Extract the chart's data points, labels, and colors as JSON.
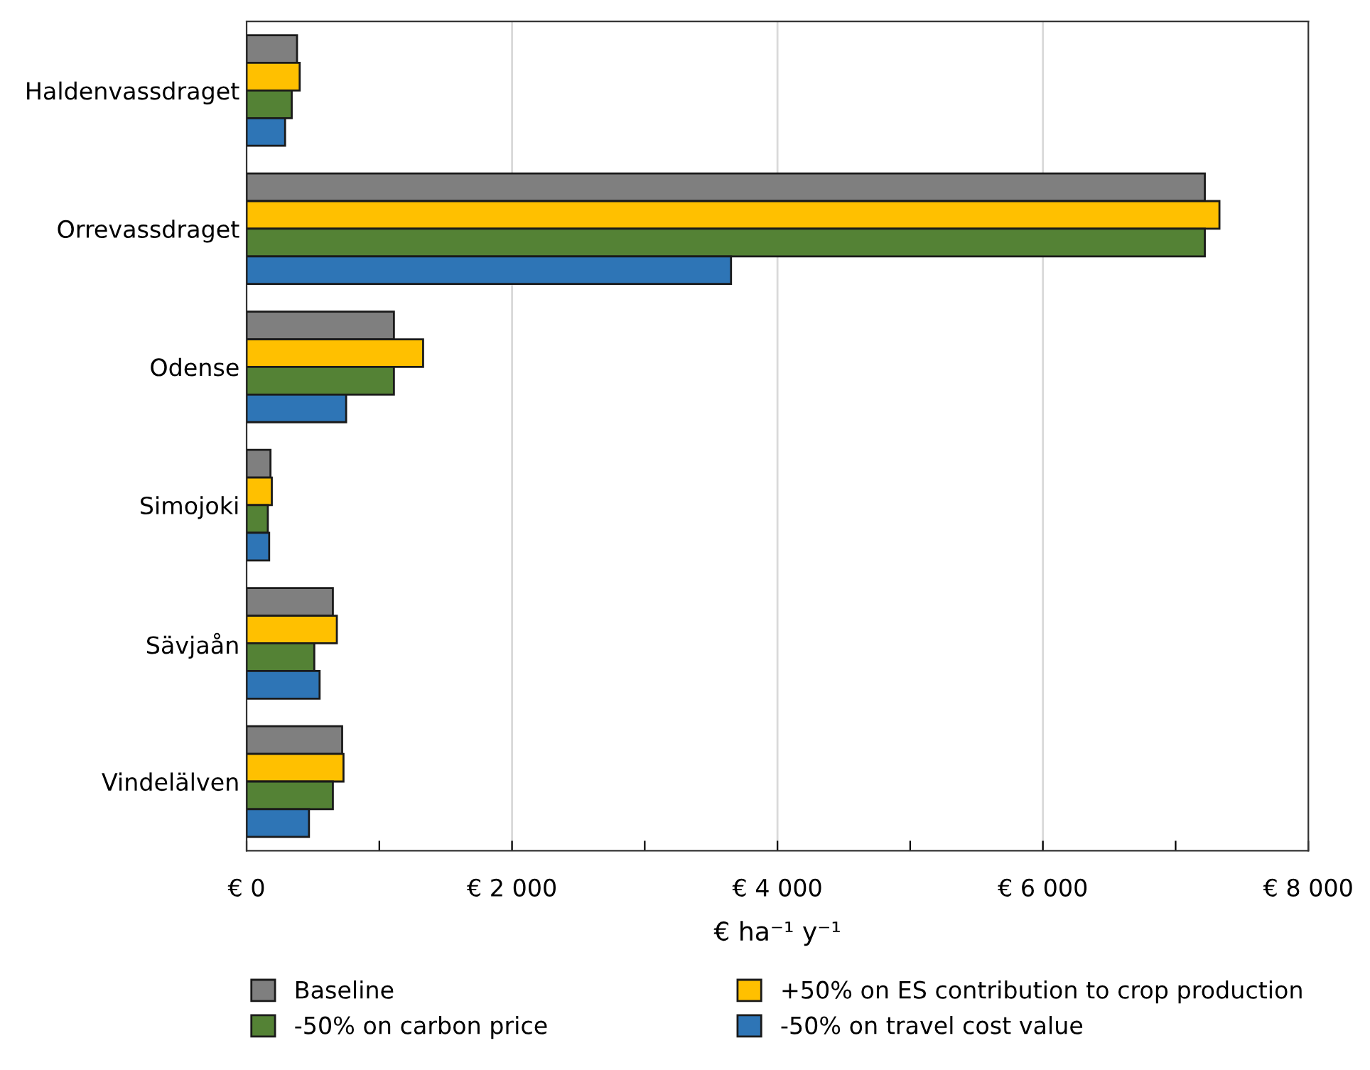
{
  "chart_data": {
    "type": "bar",
    "orientation": "horizontal",
    "xlabel": "€ ha⁻¹ y⁻¹",
    "categories": [
      "Haldenvassdraget",
      "Orrevassdraget",
      "Odense",
      "Simojoki",
      "Sävjaån",
      "Vindelälven"
    ],
    "series": [
      {
        "name": "Baseline",
        "color": "#7f7f7f",
        "values": [
          380,
          7220,
          1110,
          180,
          650,
          720
        ]
      },
      {
        "name": "+50% on ES contribution to crop production",
        "color": "#ffc000",
        "values": [
          400,
          7330,
          1330,
          190,
          680,
          730
        ]
      },
      {
        "name": "-50% on carbon price",
        "color": "#548235",
        "values": [
          340,
          7220,
          1110,
          160,
          510,
          650
        ]
      },
      {
        "name": "-50% on travel cost value",
        "color": "#2e75b6",
        "values": [
          290,
          3650,
          750,
          170,
          550,
          470
        ]
      }
    ],
    "xlim": [
      0,
      8000
    ],
    "xticks": [
      {
        "value": 0,
        "label": "€ 0"
      },
      {
        "value": 1000,
        "label": null
      },
      {
        "value": 2000,
        "label": "€ 2 000"
      },
      {
        "value": 3000,
        "label": null
      },
      {
        "value": 4000,
        "label": "€ 4 000"
      },
      {
        "value": 5000,
        "label": null
      },
      {
        "value": 6000,
        "label": "€ 6 000"
      },
      {
        "value": 7000,
        "label": null
      },
      {
        "value": 8000,
        "label": "€ 8 000"
      }
    ],
    "grid": "x",
    "legend": "bottom"
  }
}
